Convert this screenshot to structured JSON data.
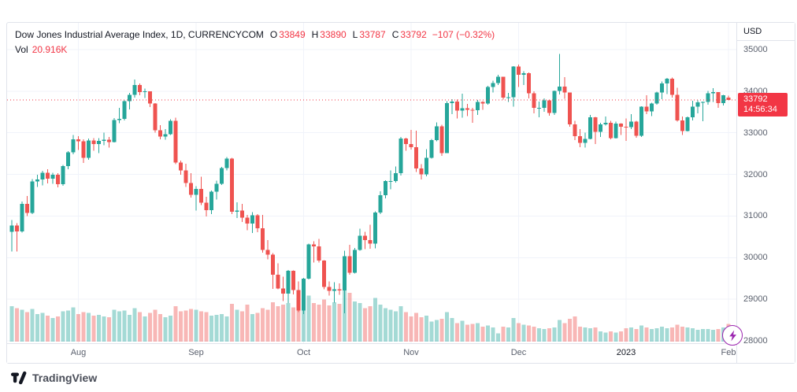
{
  "header": {
    "symbol_title": "Dow Jones Industrial Average Index, 1D, CURRENCYCOM",
    "ohlc": {
      "o_label": "O",
      "o_value": "33849",
      "h_label": "H",
      "h_value": "33890",
      "l_label": "L",
      "l_value": "33787",
      "c_label": "C",
      "c_value": "33792",
      "change": "−107 (−0.32%)"
    },
    "volume_label": "Vol",
    "volume_value": "20.916K"
  },
  "price_axis": {
    "currency": "USD",
    "labels": [
      35000,
      34000,
      33000,
      32000,
      31000,
      30000,
      29000,
      28000
    ],
    "last_price": "33792",
    "countdown": "14:56:34"
  },
  "footer": {
    "brand": "TradingView"
  },
  "colors": {
    "up": "#26a69a",
    "down": "#ef5350",
    "vol_up": "#26a69a",
    "vol_down": "#ef5350",
    "last_price_line": "#f23645",
    "badge_bg": "#f23645",
    "grid": "#f0f3fa"
  },
  "chart_data": {
    "type": "candlestick",
    "title": "Dow Jones Industrial Average Index",
    "interval": "1D",
    "exchange": "CURRENCYCOM",
    "currency": "USD",
    "legend_note": "volume pane overlaid at bottom",
    "ylim": [
      28000,
      35000
    ],
    "y_tick_step": 1000,
    "last": {
      "open": 33849,
      "high": 33890,
      "low": 33787,
      "close": 33792,
      "change": -107,
      "change_pct": -0.32,
      "volume_display": "20.916K"
    },
    "volume_scale_max_k": 75,
    "columns": [
      "open",
      "high",
      "low",
      "close",
      "volume_k"
    ],
    "x_ticks": [
      {
        "label": "Aug",
        "i": 13
      },
      {
        "label": "Sep",
        "i": 36
      },
      {
        "label": "Oct",
        "i": 57
      },
      {
        "label": "Nov",
        "i": 78
      },
      {
        "label": "Dec",
        "i": 99
      },
      {
        "label": "2023",
        "i": 120,
        "year": true
      },
      {
        "label": "Feb",
        "i": 140
      }
    ],
    "candles": [
      [
        30620,
        30900,
        30145,
        30773,
        42
      ],
      [
        30773,
        30830,
        30150,
        30630,
        40
      ],
      [
        30630,
        31350,
        30600,
        31288,
        38
      ],
      [
        31288,
        31480,
        31000,
        31072,
        35
      ],
      [
        31072,
        31890,
        31050,
        31827,
        39
      ],
      [
        31827,
        31990,
        31700,
        31875,
        33
      ],
      [
        31875,
        32090,
        31740,
        32037,
        34
      ],
      [
        32037,
        32120,
        31780,
        31899,
        31
      ],
      [
        31899,
        32040,
        31770,
        31990,
        28
      ],
      [
        31990,
        32030,
        31690,
        31762,
        30
      ],
      [
        31762,
        32230,
        31730,
        32198,
        36
      ],
      [
        32198,
        32560,
        32120,
        32530,
        37
      ],
      [
        32530,
        32950,
        32480,
        32845,
        41
      ],
      [
        32845,
        32920,
        32590,
        32798,
        33
      ],
      [
        32798,
        32840,
        32280,
        32396,
        35
      ],
      [
        32396,
        32860,
        32350,
        32813,
        34
      ],
      [
        32813,
        32870,
        32570,
        32727,
        31
      ],
      [
        32727,
        32870,
        32510,
        32803,
        32
      ],
      [
        32803,
        33000,
        32700,
        32832,
        30
      ],
      [
        32832,
        32900,
        32640,
        32774,
        29
      ],
      [
        32774,
        33350,
        32770,
        33309,
        38
      ],
      [
        33309,
        33600,
        33230,
        33337,
        36
      ],
      [
        33337,
        33780,
        33300,
        33761,
        37
      ],
      [
        33761,
        33960,
        33560,
        33912,
        32
      ],
      [
        33912,
        34280,
        33850,
        34152,
        40
      ],
      [
        34152,
        34190,
        33900,
        33980,
        35
      ],
      [
        33980,
        34060,
        33840,
        33999,
        30
      ],
      [
        33999,
        34000,
        33620,
        33707,
        34
      ],
      [
        33707,
        33710,
        33000,
        33064,
        38
      ],
      [
        33064,
        33180,
        32840,
        32910,
        33
      ],
      [
        32910,
        33090,
        32830,
        32969,
        29
      ],
      [
        32969,
        33330,
        32950,
        33292,
        31
      ],
      [
        33292,
        33364,
        32250,
        32283,
        42
      ],
      [
        32283,
        32330,
        31990,
        32099,
        36
      ],
      [
        32099,
        32260,
        31700,
        31790,
        37
      ],
      [
        31790,
        32030,
        31440,
        31510,
        39
      ],
      [
        31510,
        31720,
        31130,
        31656,
        38
      ],
      [
        31656,
        31940,
        31260,
        31318,
        36
      ],
      [
        31318,
        31460,
        30990,
        31145,
        35
      ],
      [
        31145,
        31610,
        31050,
        31581,
        31
      ],
      [
        31581,
        31850,
        31400,
        31774,
        32
      ],
      [
        31774,
        32180,
        31750,
        32152,
        33
      ],
      [
        32152,
        32420,
        32100,
        32381,
        30
      ],
      [
        32381,
        32400,
        31050,
        31104,
        45
      ],
      [
        31104,
        31330,
        30950,
        31135,
        38
      ],
      [
        31135,
        31290,
        30860,
        30961,
        36
      ],
      [
        30961,
        31030,
        30660,
        30822,
        44
      ],
      [
        30822,
        31090,
        30590,
        31019,
        33
      ],
      [
        31019,
        31050,
        30610,
        30706,
        34
      ],
      [
        30706,
        31030,
        30120,
        30183,
        40
      ],
      [
        30183,
        30420,
        29960,
        30076,
        38
      ],
      [
        30076,
        30110,
        29250,
        29590,
        47
      ],
      [
        29590,
        29860,
        29240,
        29260,
        42
      ],
      [
        29260,
        29540,
        28960,
        29134,
        44
      ],
      [
        29134,
        29700,
        28910,
        29683,
        46
      ],
      [
        29683,
        29690,
        29120,
        29225,
        41
      ],
      [
        29225,
        29430,
        28690,
        28725,
        48
      ],
      [
        28725,
        29510,
        28640,
        29490,
        52
      ],
      [
        29490,
        30340,
        29480,
        30316,
        55
      ],
      [
        30316,
        30390,
        29880,
        30273,
        46
      ],
      [
        30273,
        30450,
        29880,
        29926,
        44
      ],
      [
        29926,
        29940,
        29240,
        29296,
        50
      ],
      [
        29296,
        29430,
        29090,
        29202,
        43
      ],
      [
        29202,
        29410,
        28920,
        29239,
        47
      ],
      [
        29239,
        29380,
        29110,
        29210,
        45
      ],
      [
        29210,
        30170,
        28660,
        30038,
        75
      ],
      [
        30038,
        30310,
        29590,
        29634,
        58
      ],
      [
        29634,
        30230,
        29620,
        30185,
        48
      ],
      [
        30185,
        30700,
        30170,
        30523,
        46
      ],
      [
        30523,
        30620,
        30200,
        30423,
        40
      ],
      [
        30423,
        30790,
        30210,
        30333,
        42
      ],
      [
        30333,
        31110,
        30220,
        31082,
        52
      ],
      [
        31082,
        31590,
        31050,
        31499,
        44
      ],
      [
        31499,
        31860,
        31420,
        31836,
        40
      ],
      [
        31836,
        32100,
        31640,
        31839,
        38
      ],
      [
        31839,
        32190,
        31800,
        32033,
        36
      ],
      [
        32033,
        32900,
        31970,
        32861,
        42
      ],
      [
        32861,
        32880,
        32570,
        32732,
        35
      ],
      [
        32732,
        33070,
        32600,
        32653,
        30
      ],
      [
        32653,
        33050,
        32060,
        32147,
        34
      ],
      [
        32147,
        32250,
        31880,
        32001,
        29
      ],
      [
        32001,
        32610,
        31950,
        32403,
        31
      ],
      [
        32403,
        32850,
        32380,
        32827,
        24
      ],
      [
        32827,
        33250,
        32800,
        33160,
        26
      ],
      [
        33160,
        33190,
        32450,
        32513,
        27
      ],
      [
        32513,
        33760,
        32510,
        33715,
        35
      ],
      [
        33715,
        33810,
        33450,
        33747,
        28
      ],
      [
        33747,
        33800,
        33340,
        33536,
        22
      ],
      [
        33536,
        33940,
        33360,
        33592,
        25
      ],
      [
        33592,
        33690,
        33400,
        33553,
        20
      ],
      [
        33553,
        33600,
        33240,
        33546,
        21
      ],
      [
        33546,
        33790,
        33430,
        33745,
        22
      ],
      [
        33745,
        33760,
        33550,
        33700,
        18
      ],
      [
        33700,
        34130,
        33680,
        34098,
        19
      ],
      [
        34098,
        34250,
        33970,
        34194,
        17
      ],
      [
        34194,
        34390,
        34150,
        34347,
        10
      ],
      [
        34347,
        34350,
        33800,
        33849,
        18
      ],
      [
        33849,
        33960,
        33740,
        33852,
        17
      ],
      [
        33852,
        34600,
        33630,
        34589,
        28
      ],
      [
        34589,
        34640,
        34100,
        34395,
        22
      ],
      [
        34395,
        34480,
        34150,
        34429,
        20
      ],
      [
        34429,
        34450,
        33830,
        33947,
        19
      ],
      [
        33947,
        34000,
        33470,
        33596,
        18
      ],
      [
        33596,
        33750,
        33370,
        33597,
        16
      ],
      [
        33597,
        33830,
        33510,
        33781,
        15
      ],
      [
        33781,
        33800,
        33410,
        33476,
        16
      ],
      [
        33476,
        34020,
        33430,
        34005,
        17
      ],
      [
        34005,
        34900,
        33920,
        34108,
        26
      ],
      [
        34108,
        34340,
        33820,
        33966,
        22
      ],
      [
        33966,
        33970,
        33150,
        33202,
        27
      ],
      [
        33202,
        33290,
        32820,
        32920,
        30
      ],
      [
        32920,
        33090,
        32650,
        32757,
        18
      ],
      [
        32757,
        33000,
        32640,
        32850,
        17
      ],
      [
        32850,
        33430,
        32840,
        33376,
        16
      ],
      [
        33376,
        33380,
        32730,
        33027,
        17
      ],
      [
        33027,
        33240,
        32900,
        33204,
        12
      ],
      [
        33204,
        33390,
        33170,
        33241,
        11
      ],
      [
        33241,
        33290,
        32840,
        32875,
        12
      ],
      [
        32875,
        33270,
        32860,
        33221,
        11
      ],
      [
        33221,
        33230,
        32950,
        33147,
        12
      ],
      [
        33147,
        33340,
        32810,
        33136,
        16
      ],
      [
        33136,
        33450,
        33090,
        33270,
        17
      ],
      [
        33270,
        33290,
        32880,
        32930,
        15
      ],
      [
        32930,
        33640,
        32900,
        33631,
        19
      ],
      [
        33631,
        33900,
        33450,
        33517,
        17
      ],
      [
        33517,
        33720,
        33400,
        33704,
        15
      ],
      [
        33704,
        33990,
        33680,
        33973,
        16
      ],
      [
        33973,
        34230,
        33810,
        34190,
        18
      ],
      [
        34190,
        34320,
        33930,
        34303,
        16
      ],
      [
        34303,
        34330,
        33850,
        33911,
        17
      ],
      [
        33911,
        34080,
        33270,
        33297,
        20
      ],
      [
        33297,
        33390,
        32950,
        33045,
        18
      ],
      [
        33045,
        33390,
        33030,
        33375,
        17
      ],
      [
        33375,
        33770,
        33300,
        33630,
        16
      ],
      [
        33630,
        33780,
        33470,
        33734,
        14
      ],
      [
        33734,
        33750,
        33280,
        33744,
        15
      ],
      [
        33744,
        34010,
        33680,
        33949,
        15
      ],
      [
        33949,
        34070,
        33740,
        33978,
        14
      ],
      [
        33978,
        33980,
        33600,
        33717,
        15
      ],
      [
        33717,
        33910,
        33660,
        33899,
        17
      ],
      [
        33849,
        33890,
        33787,
        33792,
        20.916
      ]
    ]
  }
}
